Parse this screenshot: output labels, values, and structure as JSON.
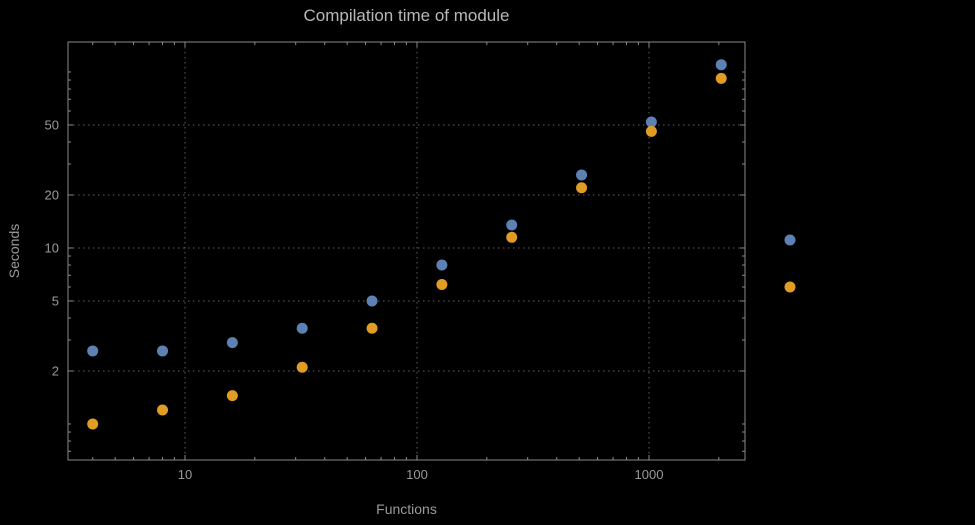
{
  "page": {
    "background": "#000000"
  },
  "style": {
    "frame_color": "#8a8a8a",
    "grid_color": "#5f5f5f",
    "tick_label_color": "#9a9a9a",
    "title_color": "#b8b8b8",
    "axis_label_color": "#9a9a9a"
  },
  "chart_data": {
    "type": "scatter",
    "title": "Compilation time of module",
    "xlabel": "Functions",
    "ylabel": "Seconds",
    "x_scale": "log",
    "y_scale": "log",
    "x_range_approx": [
      3.2,
      2600
    ],
    "y_range_approx": [
      0.63,
      148
    ],
    "grid": true,
    "x": [
      4,
      8,
      16,
      32,
      64,
      128,
      256,
      512,
      1024,
      2048
    ],
    "series": [
      {
        "name": "series-1-blue",
        "color": "#5e81b5",
        "values": [
          2.6,
          2.6,
          2.9,
          3.5,
          5.0,
          8.0,
          13.5,
          26,
          52,
          110
        ]
      },
      {
        "name": "series-2-orange",
        "color": "#e19c24",
        "values": [
          1.0,
          1.2,
          1.45,
          2.1,
          3.5,
          6.2,
          11.5,
          22,
          46,
          92
        ]
      }
    ],
    "x_ticks": [
      {
        "value": 10,
        "label": "10"
      },
      {
        "value": 100,
        "label": "100"
      },
      {
        "value": 1000,
        "label": "1000"
      }
    ],
    "y_ticks": [
      {
        "value": 2,
        "label": "2"
      },
      {
        "value": 5,
        "label": "5"
      },
      {
        "value": 10,
        "label": "10"
      },
      {
        "value": 20,
        "label": "20"
      },
      {
        "value": 50,
        "label": "50"
      }
    ],
    "x_minor_ticks": [
      4,
      5,
      6,
      7,
      8,
      9,
      20,
      30,
      40,
      50,
      60,
      70,
      80,
      90,
      200,
      300,
      400,
      500,
      600,
      700,
      800,
      900,
      2000
    ],
    "y_minor_ticks": [
      0.7,
      0.8,
      0.9,
      1,
      3,
      4,
      6,
      7,
      8,
      9,
      30,
      40,
      60,
      70,
      80,
      90,
      100
    ],
    "legend": {
      "position": "right-outside",
      "entries": [
        {
          "label": "",
          "color": "#5e81b5"
        },
        {
          "label": "",
          "color": "#e19c24"
        }
      ]
    }
  }
}
